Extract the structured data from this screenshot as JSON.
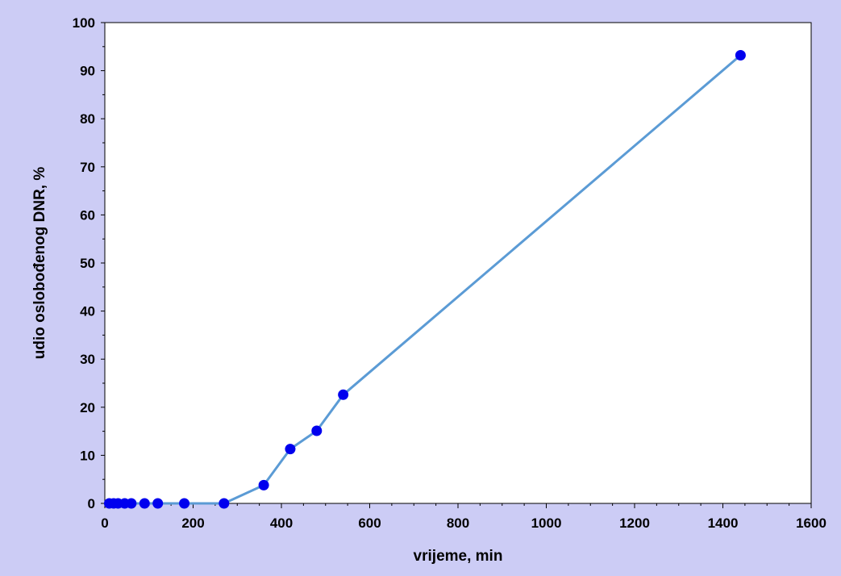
{
  "chart_data": {
    "type": "line",
    "xlabel": "vrijeme, min",
    "ylabel": "udio oslobođenog DNR, %",
    "xlim": [
      0,
      1600
    ],
    "ylim": [
      0,
      100
    ],
    "x_ticks": [
      "0",
      "200",
      "400",
      "600",
      "800",
      "1000",
      "1200",
      "1400",
      "1600"
    ],
    "y_ticks": [
      "0",
      "10",
      "20",
      "30",
      "40",
      "50",
      "60",
      "70",
      "80",
      "90",
      "100"
    ],
    "grid": false,
    "legend": "none",
    "series": [
      {
        "x": [
          10,
          20,
          30,
          45,
          60,
          90,
          120,
          180,
          270,
          360,
          420,
          480,
          540,
          1440
        ],
        "y": [
          0,
          0,
          0,
          0,
          0,
          0,
          0,
          0,
          0,
          3.8,
          11.3,
          15.1,
          22.6,
          93.2
        ]
      }
    ],
    "colors": {
      "background": "#ccccf5",
      "plot_area": "#ffffff",
      "line": "#5b9bd5",
      "marker": "#0000ee"
    }
  }
}
